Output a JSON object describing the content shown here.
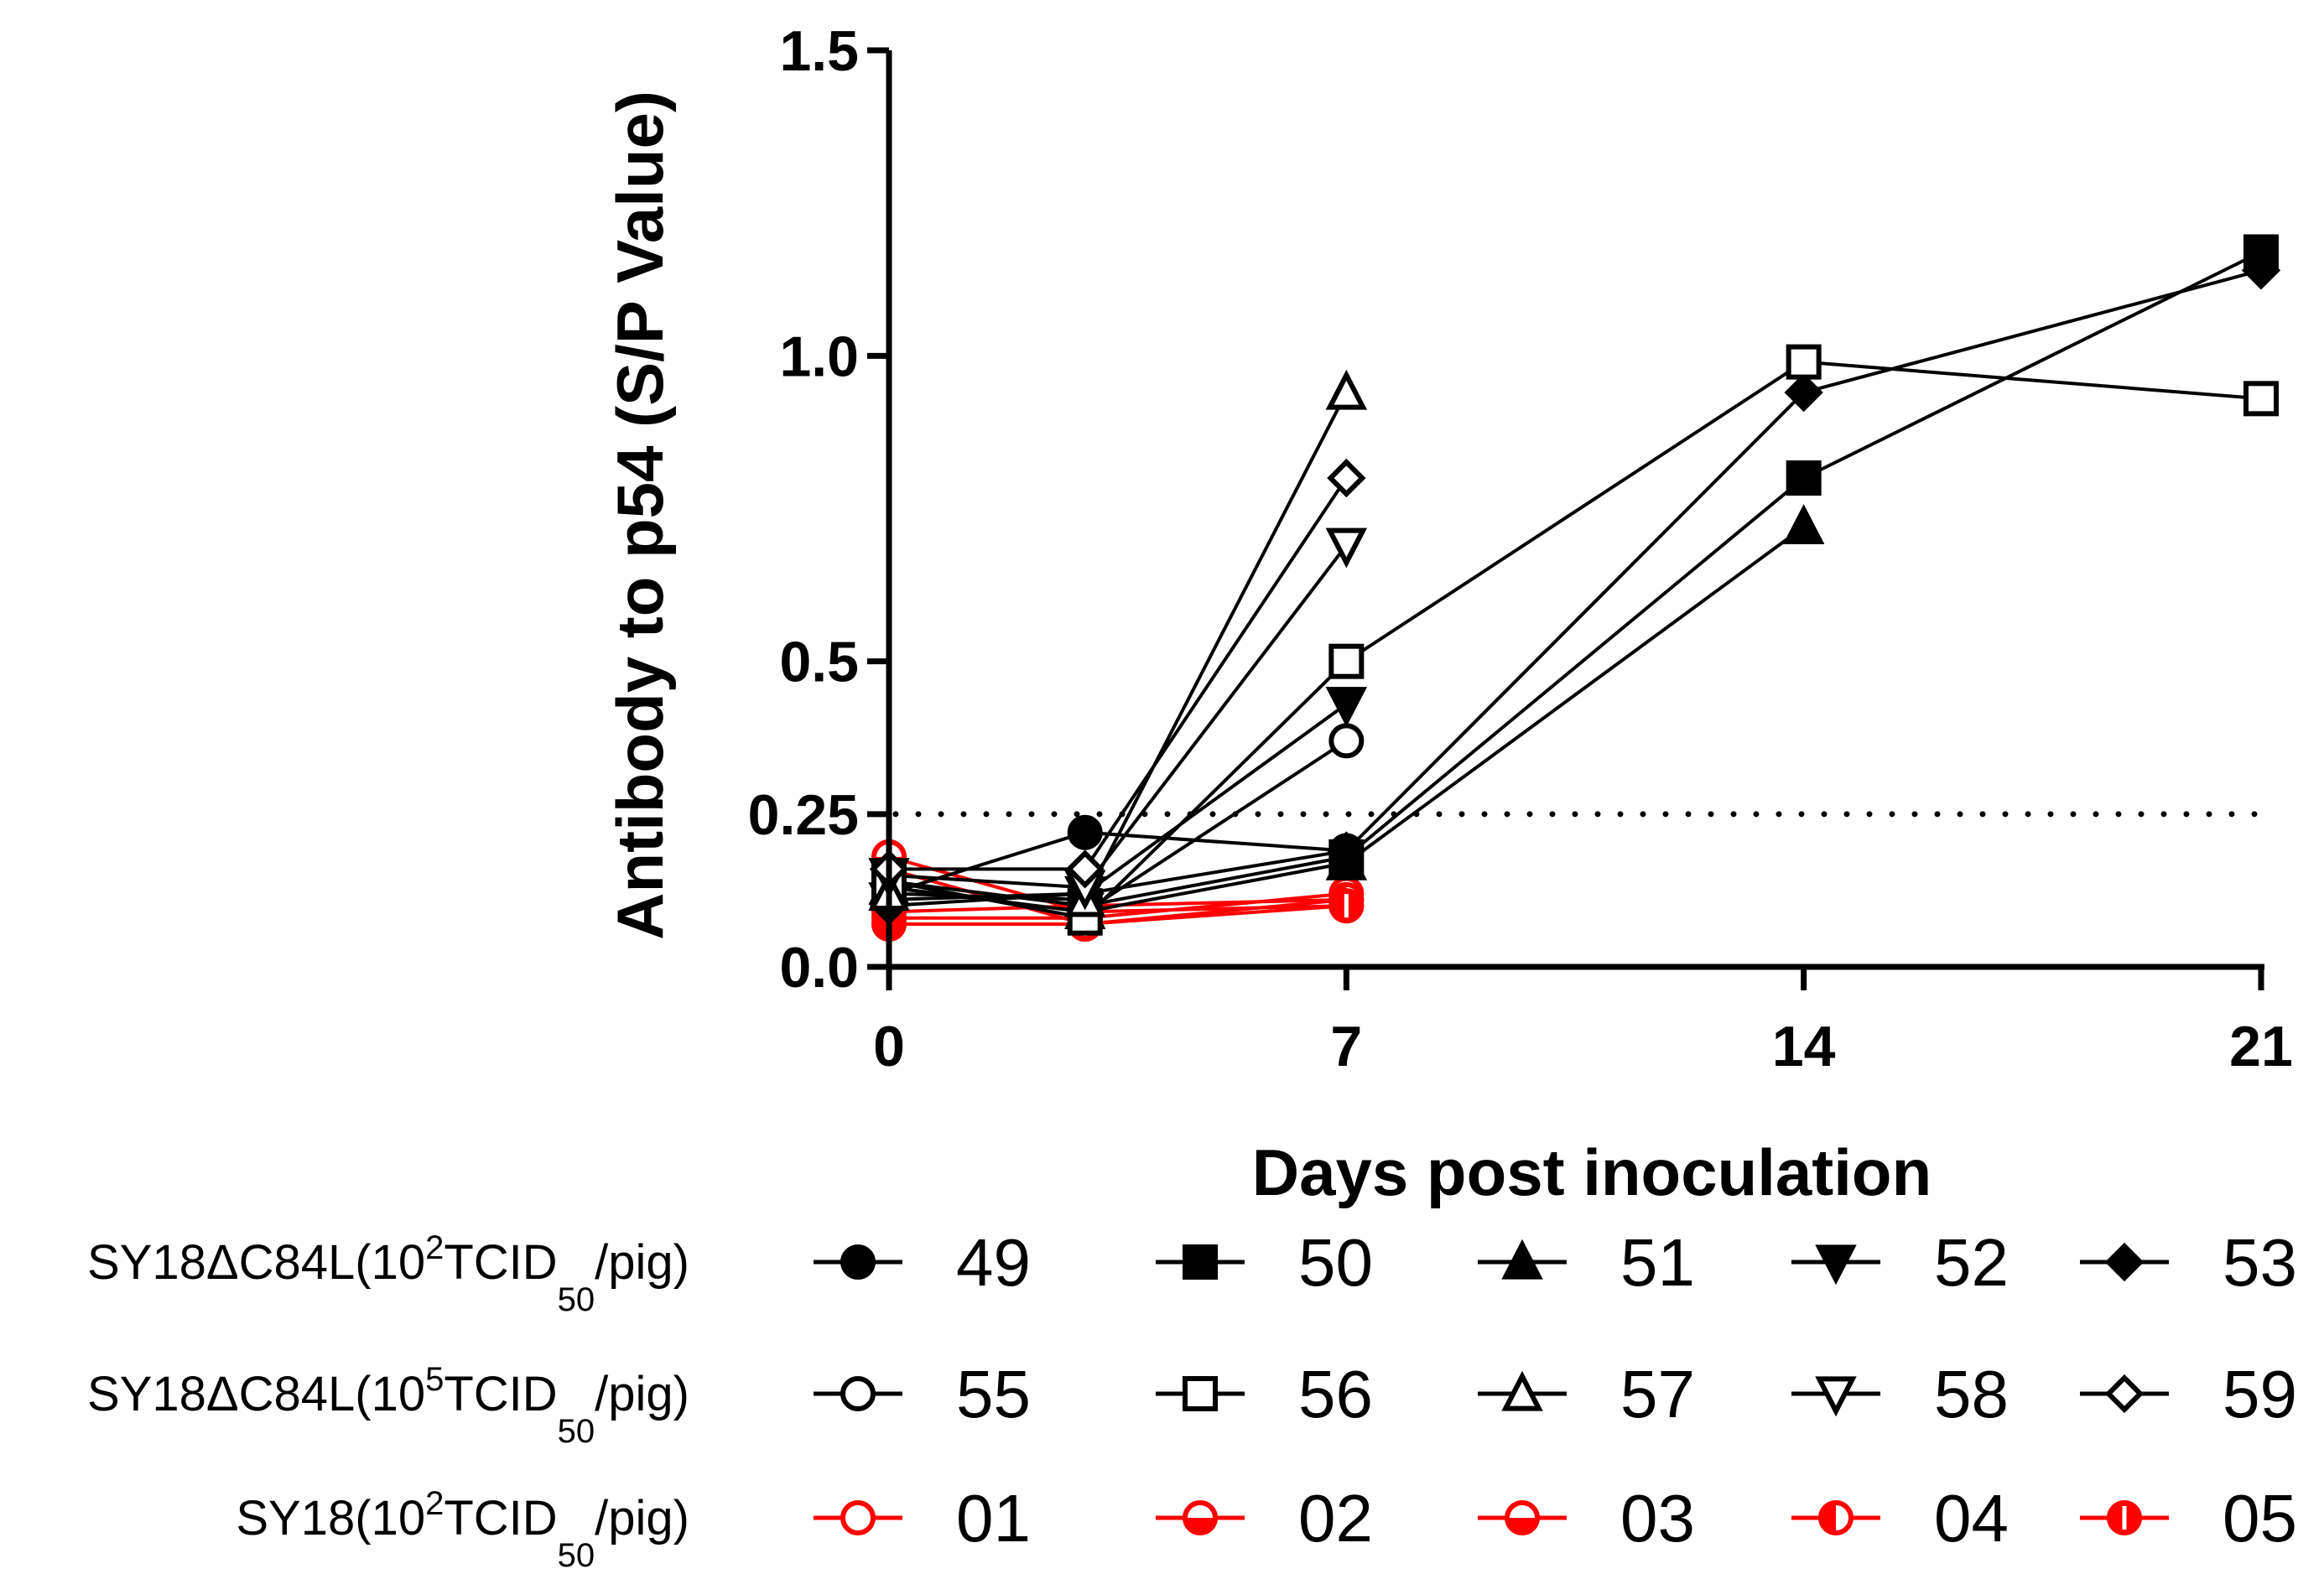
{
  "chart_data": {
    "type": "line",
    "title": "",
    "xlabel": "Days post inoculation",
    "ylabel": "Antibody to p54 (S/P Value)",
    "xlim": [
      0,
      21
    ],
    "ylim": [
      0,
      1.5
    ],
    "x_ticks": [
      0,
      7,
      14,
      21
    ],
    "x_tick_labels": [
      "0",
      "7",
      "14",
      "21"
    ],
    "y_ticks": [
      0.0,
      0.25,
      0.5,
      1.0,
      1.5
    ],
    "y_tick_labels": [
      "0.0",
      "0.25",
      "0.5",
      "1.0",
      "1.5"
    ],
    "cutoff": {
      "value": 0.25,
      "style": "dotted"
    },
    "colors": {
      "group_a": "#000000",
      "group_b": "#000000",
      "group_c": "#ff0000"
    },
    "groups": [
      {
        "label_prefix": "SY18ΔC84L(10",
        "label_sup": "2",
        "label_mid": "TCID",
        "label_sub": "50",
        "label_suffix": "/pig)",
        "color": "#000000"
      },
      {
        "label_prefix": "SY18ΔC84L(10",
        "label_sup": "5",
        "label_mid": "TCID",
        "label_sub": "50",
        "label_suffix": "/pig)",
        "color": "#000000"
      },
      {
        "label_prefix": "SY18(10",
        "label_sup": "2",
        "label_mid": "TCID",
        "label_sub": "50",
        "label_suffix": "/pig)",
        "color": "#ff0000"
      }
    ],
    "series": [
      {
        "name": "49",
        "group": 0,
        "marker": "circle-filled",
        "color": "#000000",
        "x": [
          0,
          3,
          7
        ],
        "values": [
          0.12,
          0.22,
          0.19
        ]
      },
      {
        "name": "50",
        "group": 0,
        "marker": "square-filled",
        "color": "#000000",
        "x": [
          0,
          3,
          7,
          14,
          21
        ],
        "values": [
          0.14,
          0.1,
          0.18,
          0.8,
          1.17
        ]
      },
      {
        "name": "51",
        "group": 0,
        "marker": "triangle-up-filled",
        "color": "#000000",
        "x": [
          0,
          3,
          7,
          14
        ],
        "values": [
          0.13,
          0.09,
          0.17,
          0.72
        ]
      },
      {
        "name": "52",
        "group": 0,
        "marker": "triangle-down-filled",
        "color": "#000000",
        "x": [
          0,
          3,
          7
        ],
        "values": [
          0.11,
          0.12,
          0.43
        ]
      },
      {
        "name": "53",
        "group": 0,
        "marker": "diamond-filled",
        "color": "#000000",
        "x": [
          0,
          3,
          7,
          14,
          21
        ],
        "values": [
          0.1,
          0.12,
          0.19,
          0.94,
          1.14
        ]
      },
      {
        "name": "55",
        "group": 1,
        "marker": "circle-open",
        "color": "#000000",
        "x": [
          0,
          3,
          7
        ],
        "values": [
          0.13,
          0.09,
          0.37
        ]
      },
      {
        "name": "56",
        "group": 1,
        "marker": "square-open",
        "color": "#000000",
        "x": [
          0,
          3,
          7,
          14,
          21
        ],
        "values": [
          0.14,
          0.08,
          0.5,
          0.99,
          0.93
        ]
      },
      {
        "name": "57",
        "group": 1,
        "marker": "triangle-up-open",
        "color": "#000000",
        "x": [
          0,
          3,
          7
        ],
        "values": [
          0.12,
          0.11,
          0.94
        ]
      },
      {
        "name": "58",
        "group": 1,
        "marker": "triangle-down-open",
        "color": "#000000",
        "x": [
          0,
          3,
          7
        ],
        "values": [
          0.15,
          0.13,
          0.69
        ]
      },
      {
        "name": "59",
        "group": 1,
        "marker": "diamond-open",
        "color": "#000000",
        "x": [
          0,
          3,
          7
        ],
        "values": [
          0.16,
          0.16,
          0.8
        ]
      },
      {
        "name": "01",
        "group": 2,
        "marker": "circle-open",
        "color": "#ff0000",
        "x": [
          0,
          3,
          7
        ],
        "values": [
          0.16,
          0.07,
          0.11
        ]
      },
      {
        "name": "02",
        "group": 2,
        "marker": "circle-half-bottom",
        "color": "#ff0000",
        "x": [
          0,
          3,
          7
        ],
        "values": [
          0.18,
          0.09,
          0.1
        ]
      },
      {
        "name": "03",
        "group": 2,
        "marker": "circle-half-bottom",
        "color": "#ff0000",
        "x": [
          0,
          3,
          7
        ],
        "values": [
          0.08,
          0.08,
          0.12
        ]
      },
      {
        "name": "04",
        "group": 2,
        "marker": "circle-half-left",
        "color": "#ff0000",
        "x": [
          0,
          3,
          7
        ],
        "values": [
          0.09,
          0.1,
          0.11
        ]
      },
      {
        "name": "05",
        "group": 2,
        "marker": "circle-half-right",
        "color": "#ff0000",
        "x": [
          0,
          3,
          7
        ],
        "values": [
          0.07,
          0.07,
          0.1
        ]
      }
    ]
  }
}
